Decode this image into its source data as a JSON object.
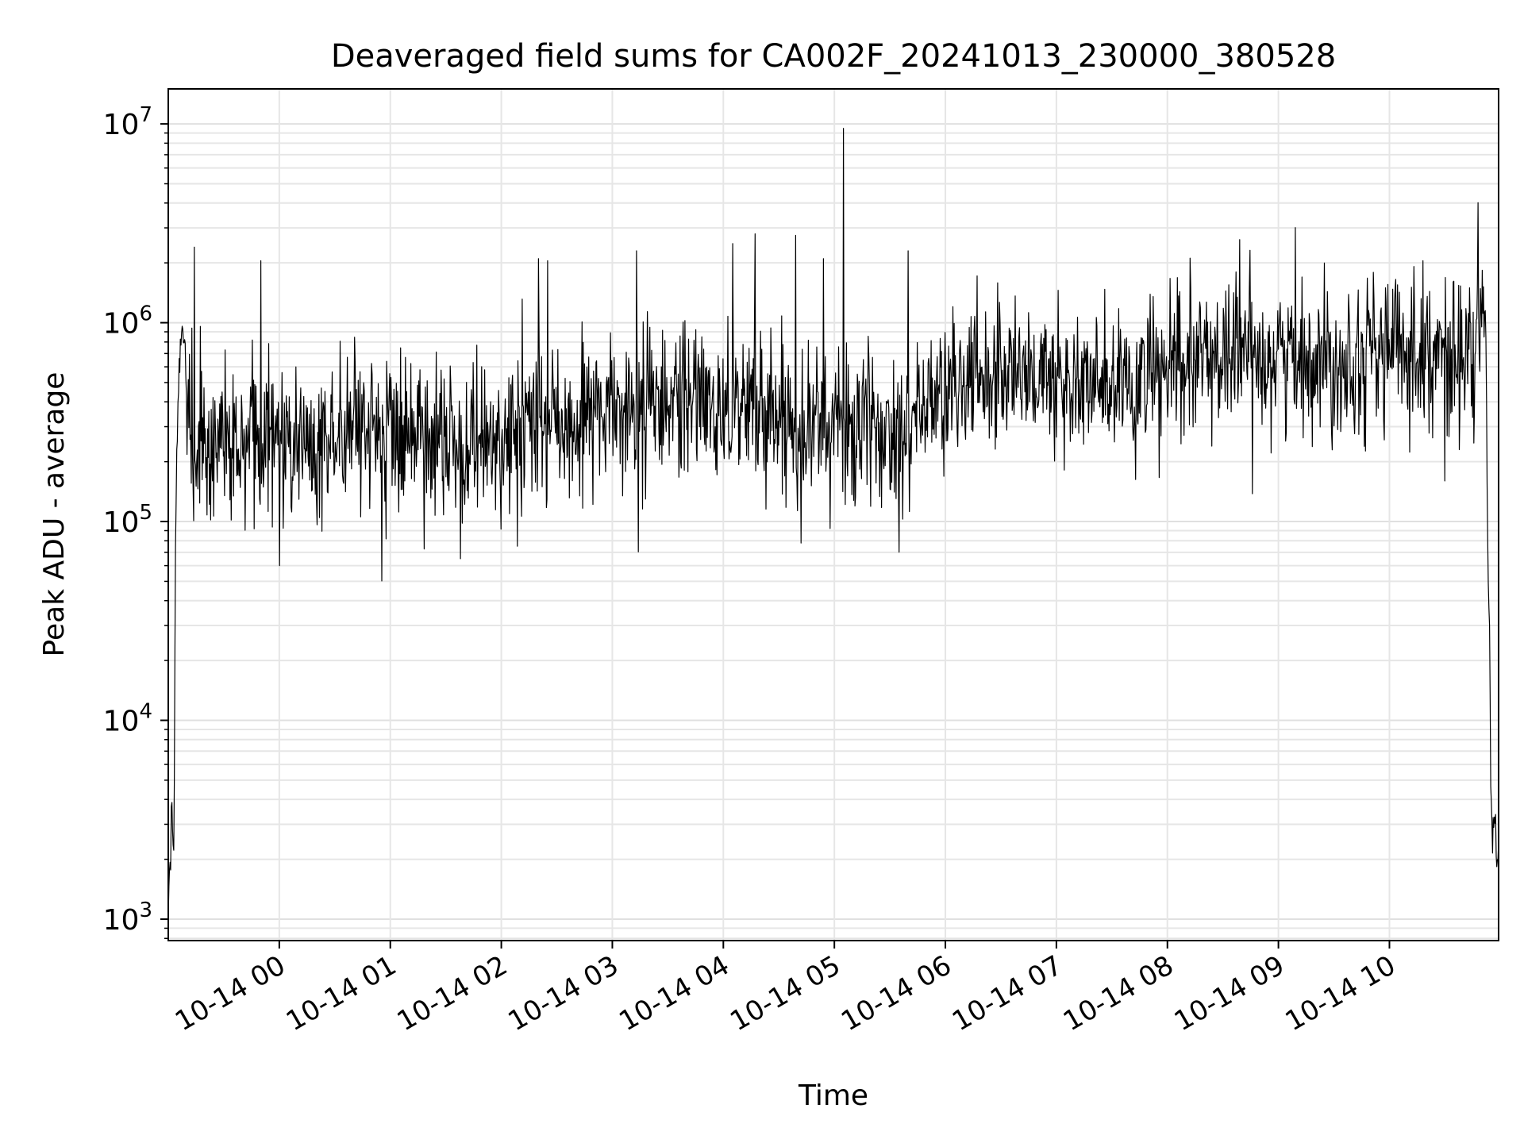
{
  "chart_data": {
    "type": "line",
    "title": "Deaveraged field sums for CA002F_20241013_230000_380528",
    "xlabel": "Time",
    "ylabel": "Peak ADU - average",
    "yscale": "log",
    "ylim": [
      780,
      15000000
    ],
    "xlim": [
      "2024-10-13 23:00",
      "2024-10-14 10:59"
    ],
    "grid": true,
    "line_color": "#000000",
    "x_tick_labels": [
      "10-14 00",
      "10-14 01",
      "10-14 02",
      "10-14 03",
      "10-14 04",
      "10-14 05",
      "10-14 06",
      "10-14 07",
      "10-14 08",
      "10-14 09",
      "10-14 10"
    ],
    "x_tick_times": [
      "2024-10-14 00:00",
      "2024-10-14 01:00",
      "2024-10-14 02:00",
      "2024-10-14 03:00",
      "2024-10-14 04:00",
      "2024-10-14 05:00",
      "2024-10-14 06:00",
      "2024-10-14 07:00",
      "2024-10-14 08:00",
      "2024-10-14 09:00",
      "2024-10-14 10:00"
    ],
    "y_ticks": [
      {
        "value": 1000,
        "base": "10",
        "exp": "3"
      },
      {
        "value": 10000,
        "base": "10",
        "exp": "4"
      },
      {
        "value": 100000,
        "base": "10",
        "exp": "5"
      },
      {
        "value": 1000000,
        "base": "10",
        "exp": "6"
      },
      {
        "value": 10000000,
        "base": "10",
        "exp": "7"
      }
    ],
    "series": [
      {
        "x": [
          "2024-10-13 23:00",
          "2024-10-13 23:02",
          "2024-10-13 23:03",
          "2024-10-13 23:04",
          "2024-10-13 23:05",
          "2024-10-13 23:06",
          "2024-10-13 23:07",
          "2024-10-13 23:08",
          "2024-10-13 23:10",
          "2024-10-13 23:12",
          "2024-10-13 23:15",
          "2024-10-13 23:18",
          "2024-10-13 23:20",
          "2024-10-13 23:22",
          "2024-10-13 23:24",
          "2024-10-13 23:26",
          "2024-10-13 23:30",
          "2024-10-13 23:40",
          "2024-10-13 23:50",
          "2024-10-14 00:00",
          "2024-10-14 00:30",
          "2024-10-14 01:00",
          "2024-10-14 01:30",
          "2024-10-14 02:00",
          "2024-10-14 02:30",
          "2024-10-14 03:00",
          "2024-10-14 03:30",
          "2024-10-14 04:00",
          "2024-10-14 04:30",
          "2024-10-14 05:00",
          "2024-10-14 05:30",
          "2024-10-14 06:00",
          "2024-10-14 06:30",
          "2024-10-14 07:00",
          "2024-10-14 07:30",
          "2024-10-14 08:00",
          "2024-10-14 08:30",
          "2024-10-14 09:00",
          "2024-10-14 09:30",
          "2024-10-14 10:00",
          "2024-10-14 10:30",
          "2024-10-14 10:45",
          "2024-10-14 10:48",
          "2024-10-14 10:50",
          "2024-10-14 10:52",
          "2024-10-14 10:53",
          "2024-10-14 10:54",
          "2024-10-14 10:55",
          "2024-10-14 10:56",
          "2024-10-14 10:57",
          "2024-10-14 10:58",
          "2024-10-14 10:59"
        ],
        "y": [
          1200,
          3500,
          2000,
          100000,
          300000,
          600000,
          1000000,
          1000000,
          500000,
          250000,
          220000,
          260000,
          230000,
          250000,
          240000,
          250000,
          250000,
          240000,
          260000,
          250000,
          260000,
          280000,
          250000,
          250000,
          320000,
          350000,
          380000,
          400000,
          350000,
          300000,
          280000,
          450000,
          600000,
          500000,
          450000,
          550000,
          700000,
          700000,
          650000,
          750000,
          700000,
          650000,
          900000,
          1200000,
          1000000,
          100000,
          30000,
          3000,
          2500,
          3200,
          2000,
          2500
        ],
        "noise_amplitude_decades": 0.35,
        "spikes": [
          {
            "x": "2024-10-13 23:14",
            "y": 2400000
          },
          {
            "x": "2024-10-13 23:50",
            "y": 2050000
          },
          {
            "x": "2024-10-14 02:20",
            "y": 2100000
          },
          {
            "x": "2024-10-14 02:25",
            "y": 2050000
          },
          {
            "x": "2024-10-14 03:13",
            "y": 2300000
          },
          {
            "x": "2024-10-14 04:05",
            "y": 2500000
          },
          {
            "x": "2024-10-14 04:17",
            "y": 2800000
          },
          {
            "x": "2024-10-14 04:39",
            "y": 2750000
          },
          {
            "x": "2024-10-14 04:54",
            "y": 2100000
          },
          {
            "x": "2024-10-14 05:05",
            "y": 9500000
          },
          {
            "x": "2024-10-14 05:40",
            "y": 2300000
          },
          {
            "x": "2024-10-14 08:37",
            "y": 1800000
          },
          {
            "x": "2024-10-14 10:18",
            "y": 2050000
          },
          {
            "x": "2024-10-14 00:00",
            "y": 60000
          },
          {
            "x": "2024-10-14 01:38",
            "y": 65000
          },
          {
            "x": "2024-10-14 04:42",
            "y": 78000
          },
          {
            "x": "2024-10-14 10:30",
            "y": 160000
          }
        ]
      }
    ]
  }
}
